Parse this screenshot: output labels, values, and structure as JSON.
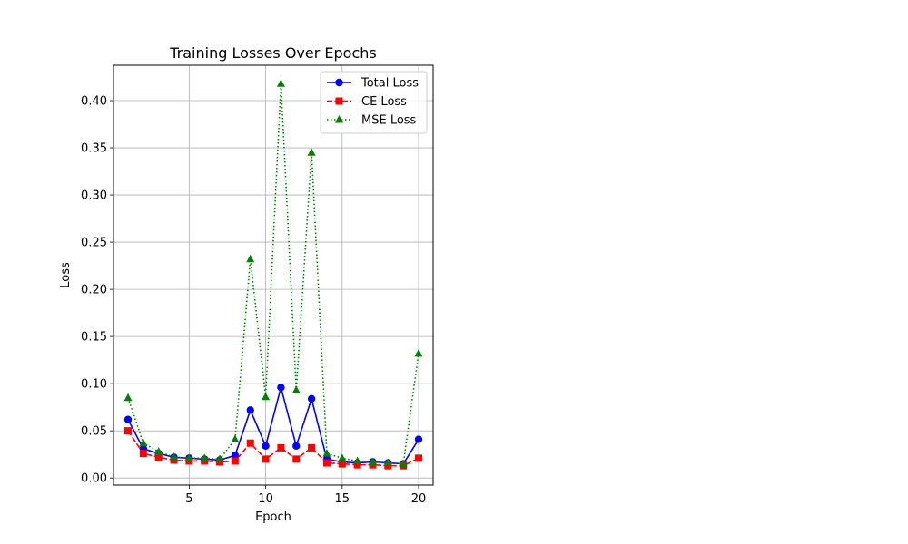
{
  "chart_data": {
    "type": "line",
    "title": "Training Losses Over Epochs",
    "xlabel": "Epoch",
    "ylabel": "Loss",
    "x": [
      1,
      2,
      3,
      4,
      5,
      6,
      7,
      8,
      9,
      10,
      11,
      12,
      13,
      14,
      15,
      16,
      17,
      18,
      19,
      20
    ],
    "xlim": [
      0.05,
      20.95
    ],
    "ylim": [
      -0.0075,
      0.4375
    ],
    "xticks": [
      5,
      10,
      15,
      20
    ],
    "xtick_labels": [
      "5",
      "10",
      "15",
      "20"
    ],
    "yticks": [
      0.0,
      0.05,
      0.1,
      0.15,
      0.2,
      0.25,
      0.3,
      0.35,
      0.4
    ],
    "ytick_labels": [
      "0.00",
      "0.05",
      "0.10",
      "0.15",
      "0.20",
      "0.25",
      "0.30",
      "0.35",
      "0.40"
    ],
    "grid": true,
    "legend_position": "upper right",
    "series": [
      {
        "name": "Total Loss",
        "color": "#0000ff",
        "linestyle": "solid",
        "marker": "circle",
        "values": [
          0.062,
          0.031,
          0.026,
          0.022,
          0.021,
          0.02,
          0.019,
          0.024,
          0.072,
          0.034,
          0.096,
          0.034,
          0.084,
          0.02,
          0.017,
          0.016,
          0.017,
          0.016,
          0.015,
          0.041
        ]
      },
      {
        "name": "CE Loss",
        "color": "#ff0000",
        "linestyle": "dashed",
        "marker": "square",
        "values": [
          0.05,
          0.026,
          0.022,
          0.019,
          0.018,
          0.018,
          0.017,
          0.018,
          0.037,
          0.02,
          0.032,
          0.02,
          0.032,
          0.016,
          0.015,
          0.014,
          0.014,
          0.013,
          0.013,
          0.021
        ]
      },
      {
        "name": "MSE Loss",
        "color": "#008000",
        "linestyle": "dotted",
        "marker": "triangle",
        "values": [
          0.085,
          0.037,
          0.028,
          0.022,
          0.021,
          0.021,
          0.02,
          0.041,
          0.232,
          0.086,
          0.418,
          0.093,
          0.345,
          0.026,
          0.021,
          0.018,
          0.017,
          0.016,
          0.015,
          0.132
        ]
      }
    ]
  }
}
